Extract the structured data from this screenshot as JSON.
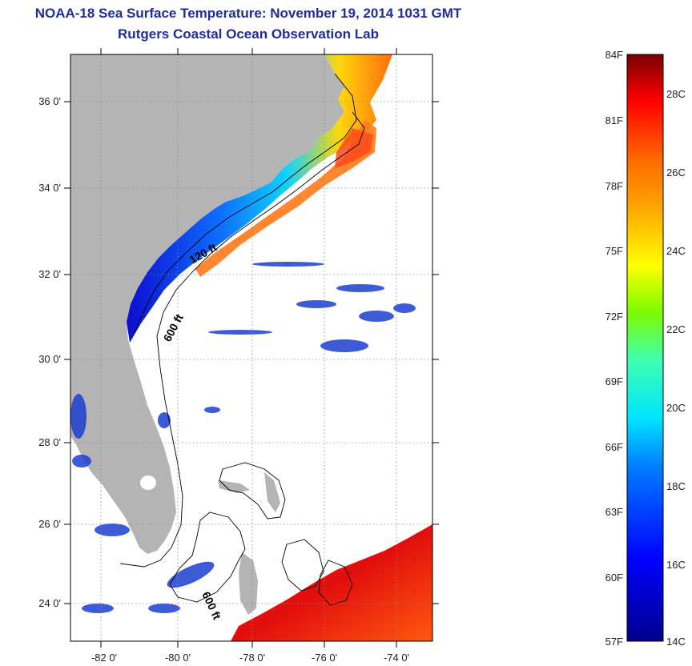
{
  "title": "NOAA-18 Sea Surface Temperature:  November 19, 2014 1031 GMT",
  "subtitle": "Rutgers Coastal Ocean Observation Lab",
  "lat_labels": [
    "36 0'",
    "34 0'",
    "32 0'",
    "30 0'",
    "28 0'",
    "26 0'",
    "24 0'"
  ],
  "lon_labels": [
    "-82 0'",
    "-80 0'",
    "-78 0'",
    "-76 0'",
    "-74 0'"
  ],
  "contour_labels": {
    "shelf_120": "120 ft",
    "slope_600_north": "600 ft",
    "slope_600_south": "600 ft"
  },
  "colorbar": {
    "fahrenheit_labels": [
      "84F",
      "81F",
      "78F",
      "75F",
      "72F",
      "69F",
      "66F",
      "63F",
      "60F",
      "57F"
    ],
    "celsius_labels": [
      "28C",
      "26C",
      "24C",
      "22C",
      "20C",
      "18C",
      "16C",
      "14C"
    ],
    "colors": {
      "cold": "#00008b",
      "blue": "#0000ff",
      "cyan": "#00e5ff",
      "green": "#7cfc00",
      "yellow": "#ffff00",
      "orange": "#ff8c00",
      "red": "#ff0000",
      "hot": "#7a0000"
    }
  },
  "colors": {
    "land": "#b4b4b4",
    "ocean": "#ffffff",
    "title": "#1f2d9a",
    "contour": "#000000"
  }
}
